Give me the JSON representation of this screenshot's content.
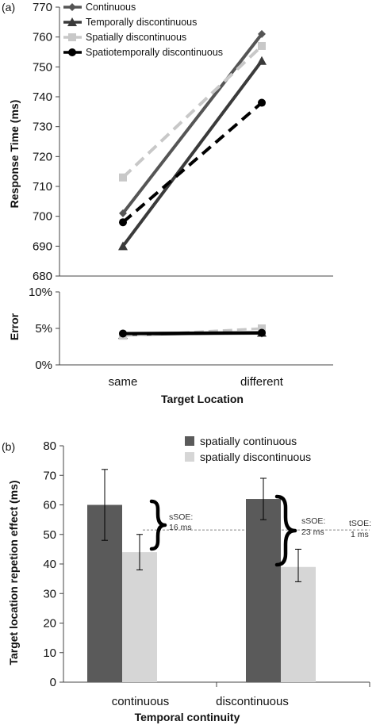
{
  "chart_data": [
    {
      "panel_label": "(a)",
      "type": "line",
      "categories": [
        "same",
        "different"
      ],
      "xlabel": "Target Location",
      "ylabel": "Response Time  (ms)",
      "ylim": [
        680,
        770
      ],
      "yticks": [
        "680",
        "690",
        "700",
        "710",
        "720",
        "730",
        "740",
        "750",
        "760",
        "770"
      ],
      "grid": false,
      "legend_position": "top-left",
      "series": [
        {
          "name": "Continuous",
          "values": [
            701,
            761
          ],
          "color": "#555555",
          "marker": "diamond",
          "dash": "solid"
        },
        {
          "name": "Temporally discontinuous",
          "values": [
            690,
            752
          ],
          "color": "#3a3a3a",
          "marker": "triangle",
          "dash": "solid"
        },
        {
          "name": "Spatially discontinuous",
          "values": [
            713,
            757
          ],
          "color": "#c8c8c8",
          "marker": "square",
          "dash": "dashed"
        },
        {
          "name": "Spatiotemporally discontinuous",
          "values": [
            698,
            738
          ],
          "color": "#000000",
          "marker": "circle",
          "dash": "dashed"
        }
      ]
    },
    {
      "type": "line",
      "categories": [
        "same",
        "different"
      ],
      "ylabel": "Error",
      "ylim": [
        0,
        10
      ],
      "yticks": [
        "0%",
        "5%",
        "10%"
      ],
      "series": [
        {
          "values": [
            4.2,
            4.3
          ],
          "color": "#555555",
          "dash": "solid"
        },
        {
          "values": [
            4.1,
            4.4
          ],
          "color": "#3a3a3a",
          "dash": "solid"
        },
        {
          "values": [
            4.0,
            5.0
          ],
          "color": "#c8c8c8",
          "dash": "dashed"
        },
        {
          "values": [
            4.3,
            4.4
          ],
          "color": "#000000",
          "dash": "solid"
        }
      ]
    },
    {
      "panel_label": "(b)",
      "type": "bar",
      "categories": [
        "continuous",
        "discontinuous"
      ],
      "xlabel": "Temporal continuity",
      "ylabel": "Target location repetion effect (ms)",
      "ylim": [
        0,
        80
      ],
      "yticks": [
        "0",
        "10",
        "20",
        "30",
        "40",
        "50",
        "60",
        "70",
        "80"
      ],
      "legend_position": "top-right",
      "series": [
        {
          "name": "spatially continuous",
          "values": [
            60,
            62
          ],
          "err_high": [
            72,
            69
          ],
          "err_low": [
            48,
            55
          ],
          "color": "#5a5a5a"
        },
        {
          "name": "spatially discontinuous",
          "values": [
            44,
            39
          ],
          "err_high": [
            50,
            45
          ],
          "err_low": [
            38,
            34
          ],
          "color": "#d6d6d6"
        }
      ],
      "reference_line": 51.5,
      "annotations": [
        {
          "text_1": "sSOE:",
          "text_2": "16 ms"
        },
        {
          "text_1": "sSOE:",
          "text_2": "23 ms"
        },
        {
          "text_1": "tSOE:",
          "text_2": "1 ms"
        }
      ]
    }
  ]
}
